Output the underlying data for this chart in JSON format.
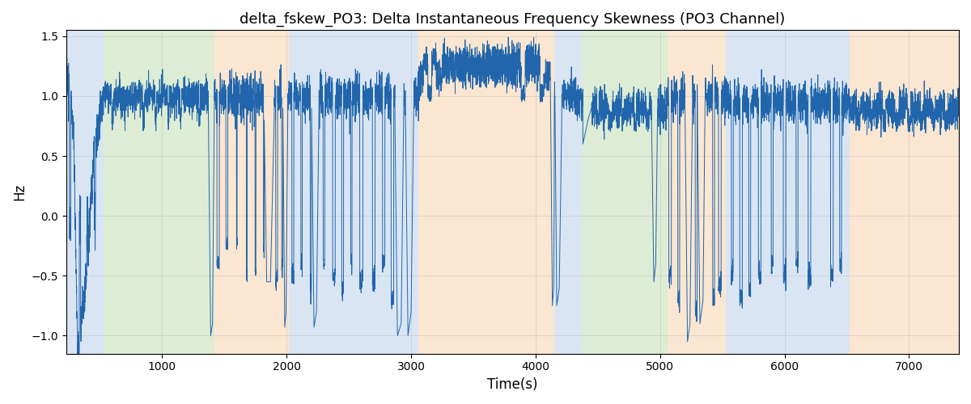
{
  "title": "delta_fskew_PO3: Delta Instantaneous Frequency Skewness (PO3 Channel)",
  "xlabel": "Time(s)",
  "ylabel": "Hz",
  "xlim": [
    230,
    7400
  ],
  "ylim": [
    -1.15,
    1.55
  ],
  "line_color": "#2166ac",
  "line_width": 0.7,
  "bg_bands": [
    {
      "xmin": 230,
      "xmax": 530,
      "color": "#aec6e8",
      "alpha": 0.45
    },
    {
      "xmin": 530,
      "xmax": 1420,
      "color": "#b5d5a0",
      "alpha": 0.45
    },
    {
      "xmin": 1420,
      "xmax": 2020,
      "color": "#f5c99a",
      "alpha": 0.45
    },
    {
      "xmin": 2020,
      "xmax": 3060,
      "color": "#aec6e8",
      "alpha": 0.45
    },
    {
      "xmin": 3060,
      "xmax": 4150,
      "color": "#f5c99a",
      "alpha": 0.45
    },
    {
      "xmin": 4150,
      "xmax": 4380,
      "color": "#aec6e8",
      "alpha": 0.45
    },
    {
      "xmin": 4380,
      "xmax": 5060,
      "color": "#b5d5a0",
      "alpha": 0.45
    },
    {
      "xmin": 5060,
      "xmax": 5530,
      "color": "#f5c99a",
      "alpha": 0.45
    },
    {
      "xmin": 5530,
      "xmax": 6520,
      "color": "#aec6e8",
      "alpha": 0.45
    },
    {
      "xmin": 6520,
      "xmax": 7400,
      "color": "#f5c99a",
      "alpha": 0.45
    }
  ],
  "xticks": [
    1000,
    2000,
    3000,
    4000,
    5000,
    6000,
    7000
  ],
  "yticks": [
    -1.0,
    -0.5,
    0.0,
    0.5,
    1.0,
    1.5
  ],
  "grid_color": "#b0b0b0",
  "grid_alpha": 0.5,
  "seed": 12345
}
